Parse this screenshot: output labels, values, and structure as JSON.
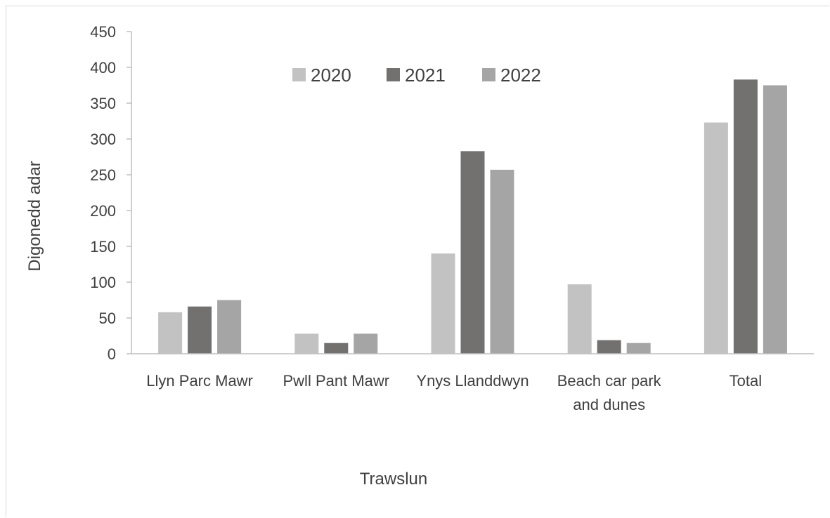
{
  "chart_data": {
    "type": "bar",
    "categories": [
      [
        "Llyn Parc Mawr"
      ],
      [
        "Pwll Pant Mawr"
      ],
      [
        "Ynys Llanddwyn"
      ],
      [
        "Beach car park",
        "and dunes"
      ],
      [
        "Total"
      ]
    ],
    "series": [
      {
        "name": "2020",
        "color": "#c2c2c2",
        "values": [
          58,
          28,
          140,
          97,
          323
        ]
      },
      {
        "name": "2021",
        "color": "#737070",
        "values": [
          66,
          15,
          283,
          19,
          383
        ]
      },
      {
        "name": "2022",
        "color": "#a5a5a5",
        "values": [
          75,
          28,
          257,
          15,
          375
        ]
      }
    ],
    "xlabel": "Trawslun",
    "ylabel": "Digonedd adar",
    "ylim": [
      0,
      450
    ],
    "yticks": [
      0,
      50,
      100,
      150,
      200,
      250,
      300,
      350,
      400,
      450
    ],
    "legend_position": "top",
    "grid": false
  }
}
